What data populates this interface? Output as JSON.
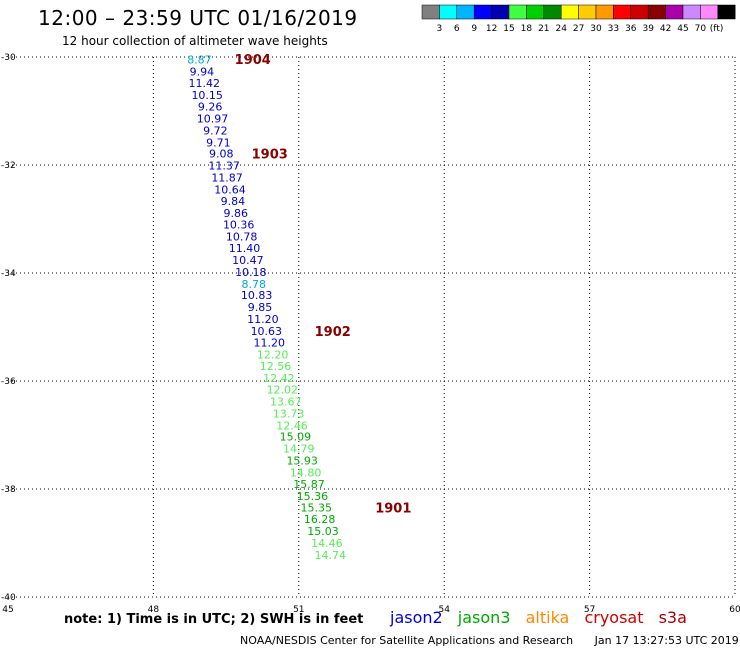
{
  "title": "12:00 – 23:59 UTC 01/16/2019",
  "subtitle": "12 hour collection of altimeter wave heights",
  "colorbar": {
    "colors": [
      "#808080",
      "#00ffff",
      "#00b4ff",
      "#0000ff",
      "#0000b0",
      "#40ff40",
      "#00d000",
      "#008800",
      "#ffff00",
      "#ffcc00",
      "#ff9900",
      "#ff0000",
      "#cc0000",
      "#880000",
      "#aa00aa",
      "#cc88ff",
      "#ff88ff",
      "#000000"
    ],
    "labels": [
      "3",
      "6",
      "9",
      "12",
      "15",
      "18",
      "21",
      "24",
      "27",
      "30",
      "33",
      "36",
      "39",
      "42",
      "45",
      "70"
    ],
    "unit": "(ft)"
  },
  "note": "note:  1) Time is in UTC;  2) SWH is in feet",
  "satellites": [
    {
      "name": "jason2",
      "color": "#0000dd"
    },
    {
      "name": "jason3",
      "color": "#00aa00"
    },
    {
      "name": "altika",
      "color": "#ff8800"
    },
    {
      "name": "cryosat",
      "color": "#cc0000"
    },
    {
      "name": "s3a",
      "color": "#aa0000"
    }
  ],
  "footer": "NOAA/NESDIS Center for Satellite Applications and Research",
  "timestamp": "Jan 17 13:27:53 UTC 2019",
  "chart_data": {
    "type": "scatter",
    "title": "12:00 – 23:59 UTC 01/16/2019",
    "xlim": [
      45,
      60
    ],
    "ylim": [
      -40,
      -30
    ],
    "x_ticks": [
      "45",
      "48",
      "51",
      "54",
      "57",
      "60"
    ],
    "y_ticks": [
      "-30",
      "-32",
      "-34",
      "-36",
      "-38",
      "-40"
    ],
    "grid": true,
    "points": [
      {
        "x": 48.95,
        "y": -30.05,
        "v": "8.87",
        "color": "#00aadd"
      },
      {
        "x": 49.0,
        "y": -30.27,
        "v": "9.94",
        "color": "#0000cc"
      },
      {
        "x": 49.05,
        "y": -30.48,
        "v": "11.42",
        "color": "#0000cc"
      },
      {
        "x": 49.11,
        "y": -30.7,
        "v": "10.15",
        "color": "#0000cc"
      },
      {
        "x": 49.17,
        "y": -30.92,
        "v": "9.26",
        "color": "#0000cc"
      },
      {
        "x": 49.22,
        "y": -31.14,
        "v": "10.97",
        "color": "#0000cc"
      },
      {
        "x": 49.28,
        "y": -31.36,
        "v": "9.72",
        "color": "#0000cc"
      },
      {
        "x": 49.34,
        "y": -31.58,
        "v": "9.71",
        "color": "#0000cc"
      },
      {
        "x": 49.4,
        "y": -31.79,
        "v": "9.08",
        "color": "#0000cc"
      },
      {
        "x": 49.46,
        "y": -32.01,
        "v": "11.37",
        "color": "#0000cc"
      },
      {
        "x": 49.52,
        "y": -32.23,
        "v": "11.87",
        "color": "#0000cc"
      },
      {
        "x": 49.58,
        "y": -32.45,
        "v": "10.64",
        "color": "#0000cc"
      },
      {
        "x": 49.64,
        "y": -32.67,
        "v": "9.84",
        "color": "#0000cc"
      },
      {
        "x": 49.7,
        "y": -32.89,
        "v": "9.86",
        "color": "#0000cc"
      },
      {
        "x": 49.76,
        "y": -33.1,
        "v": "10.36",
        "color": "#0000cc"
      },
      {
        "x": 49.82,
        "y": -33.32,
        "v": "10.78",
        "color": "#0000cc"
      },
      {
        "x": 49.88,
        "y": -33.54,
        "v": "11.40",
        "color": "#0000cc"
      },
      {
        "x": 49.95,
        "y": -33.76,
        "v": "10.47",
        "color": "#0000cc"
      },
      {
        "x": 50.01,
        "y": -33.98,
        "v": "10.18",
        "color": "#0000cc"
      },
      {
        "x": 50.07,
        "y": -34.2,
        "v": "8.78",
        "color": "#00aadd"
      },
      {
        "x": 50.13,
        "y": -34.41,
        "v": "10.83",
        "color": "#0000cc"
      },
      {
        "x": 50.2,
        "y": -34.63,
        "v": "9.85",
        "color": "#0000cc"
      },
      {
        "x": 50.26,
        "y": -34.85,
        "v": "11.20",
        "color": "#0000cc"
      },
      {
        "x": 50.33,
        "y": -35.07,
        "v": "10.63",
        "color": "#0000cc"
      },
      {
        "x": 50.39,
        "y": -35.29,
        "v": "11.20",
        "color": "#0000cc"
      },
      {
        "x": 50.46,
        "y": -35.51,
        "v": "12.20",
        "color": "#55ee55"
      },
      {
        "x": 50.52,
        "y": -35.72,
        "v": "12.56",
        "color": "#55ee55"
      },
      {
        "x": 50.59,
        "y": -35.94,
        "v": "12.42",
        "color": "#55ee55"
      },
      {
        "x": 50.66,
        "y": -36.16,
        "v": "12.02",
        "color": "#55ee55"
      },
      {
        "x": 50.73,
        "y": -36.38,
        "v": "13.67",
        "color": "#55ee55"
      },
      {
        "x": 50.79,
        "y": -36.6,
        "v": "13.73",
        "color": "#55ee55"
      },
      {
        "x": 50.86,
        "y": -36.82,
        "v": "12.46",
        "color": "#55ee55"
      },
      {
        "x": 50.93,
        "y": -37.03,
        "v": "15.09",
        "color": "#00aa00"
      },
      {
        "x": 51.0,
        "y": -37.25,
        "v": "14.79",
        "color": "#55ee55"
      },
      {
        "x": 51.07,
        "y": -37.47,
        "v": "15.93",
        "color": "#00aa00"
      },
      {
        "x": 51.14,
        "y": -37.69,
        "v": "14.80",
        "color": "#55ee55"
      },
      {
        "x": 51.21,
        "y": -37.91,
        "v": "15.87",
        "color": "#00aa00"
      },
      {
        "x": 51.28,
        "y": -38.13,
        "v": "15.36",
        "color": "#00aa00"
      },
      {
        "x": 51.36,
        "y": -38.34,
        "v": "15.35",
        "color": "#00aa00"
      },
      {
        "x": 51.43,
        "y": -38.56,
        "v": "16.28",
        "color": "#00aa00"
      },
      {
        "x": 51.5,
        "y": -38.78,
        "v": "15.03",
        "color": "#00aa00"
      },
      {
        "x": 51.58,
        "y": -39.0,
        "v": "14.46",
        "color": "#55ee55"
      },
      {
        "x": 51.65,
        "y": -39.22,
        "v": "14.74",
        "color": "#55ee55"
      }
    ],
    "track_labels": [
      {
        "x": 50.05,
        "y": -30.04,
        "text": "1904",
        "color": "#880000"
      },
      {
        "x": 50.4,
        "y": -31.79,
        "text": "1903",
        "color": "#880000"
      },
      {
        "x": 51.7,
        "y": -35.07,
        "text": "1902",
        "color": "#880000"
      },
      {
        "x": 52.95,
        "y": -38.34,
        "text": "1901",
        "color": "#880000"
      }
    ]
  }
}
